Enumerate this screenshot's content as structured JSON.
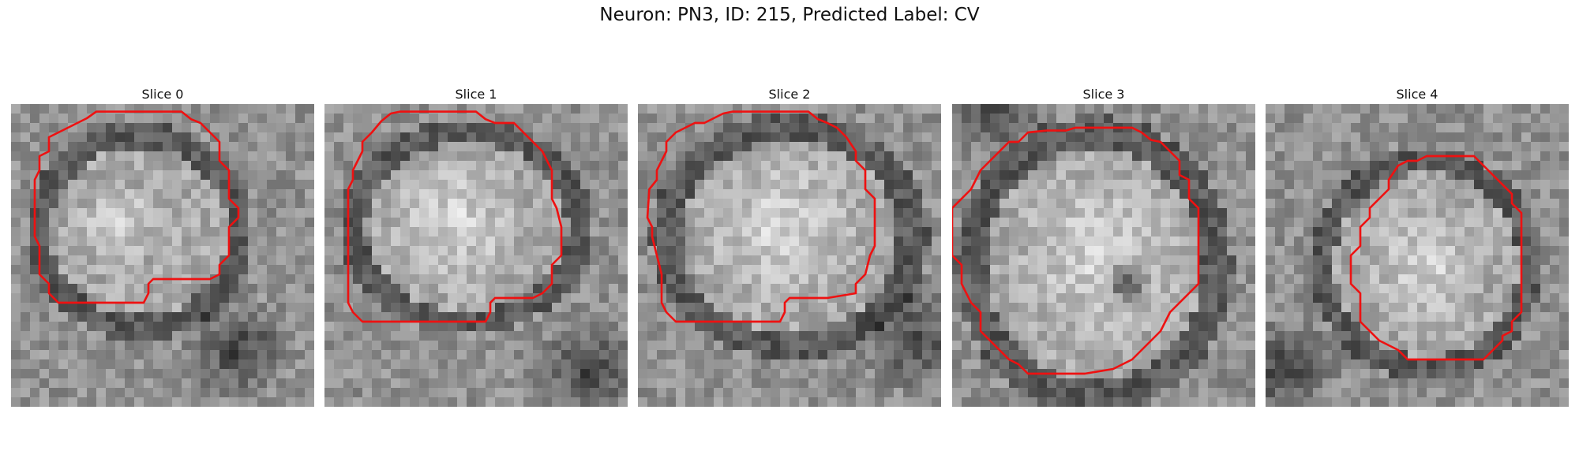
{
  "title": "Neuron: PN3, ID: 215, Predicted Label: CV",
  "slices": [
    {
      "label": "Slice 0"
    },
    {
      "label": "Slice 1"
    },
    {
      "label": "Slice 2"
    },
    {
      "label": "Slice 3"
    },
    {
      "label": "Slice 4"
    }
  ],
  "colors": {
    "contour": "#ee1111"
  }
}
